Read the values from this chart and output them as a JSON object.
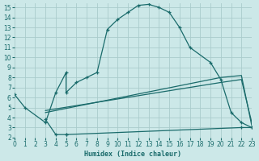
{
  "xlabel": "Humidex (Indice chaleur)",
  "bg_color": "#cce8e8",
  "grid_color": "#aacccc",
  "line_color": "#1a6b6b",
  "xlim": [
    0,
    23
  ],
  "ylim": [
    2,
    15.4
  ],
  "xticks": [
    0,
    1,
    2,
    3,
    4,
    5,
    6,
    7,
    8,
    9,
    10,
    11,
    12,
    13,
    14,
    15,
    16,
    17,
    18,
    19,
    20,
    21,
    22,
    23
  ],
  "yticks": [
    2,
    3,
    4,
    5,
    6,
    7,
    8,
    9,
    10,
    11,
    12,
    13,
    14,
    15
  ],
  "line1_x": [
    0,
    1,
    3,
    4,
    5,
    5,
    6,
    7,
    8,
    9,
    10,
    11,
    12,
    13,
    14,
    15,
    16,
    17,
    19,
    20,
    21,
    22,
    23
  ],
  "line1_y": [
    6.3,
    5.0,
    3.5,
    6.5,
    8.5,
    6.5,
    7.5,
    8.0,
    8.5,
    12.8,
    13.8,
    14.5,
    15.2,
    15.3,
    15.0,
    14.5,
    13.0,
    11.0,
    9.5,
    7.8,
    4.5,
    3.5,
    3.0
  ],
  "line2_x": [
    3,
    4,
    5,
    5,
    22,
    23
  ],
  "line2_y": [
    3.8,
    2.3,
    2.3,
    2.3,
    3.0,
    3.0
  ],
  "line3_x": [
    3,
    20,
    22,
    23
  ],
  "line3_y": [
    4.5,
    8.0,
    8.2,
    3.2
  ],
  "line4_x": [
    3,
    20,
    22,
    23
  ],
  "line4_y": [
    4.7,
    7.5,
    7.8,
    3.5
  ]
}
